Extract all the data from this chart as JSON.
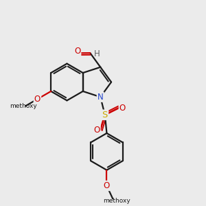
{
  "background_color": "#ebebeb",
  "bond_color": "#1a1a1a",
  "figsize": [
    3.0,
    3.0
  ],
  "dpi": 100,
  "colors": {
    "C": "#1a1a1a",
    "H": "#606060",
    "O": "#cc0000",
    "N": "#2244cc",
    "S": "#ccaa00"
  }
}
